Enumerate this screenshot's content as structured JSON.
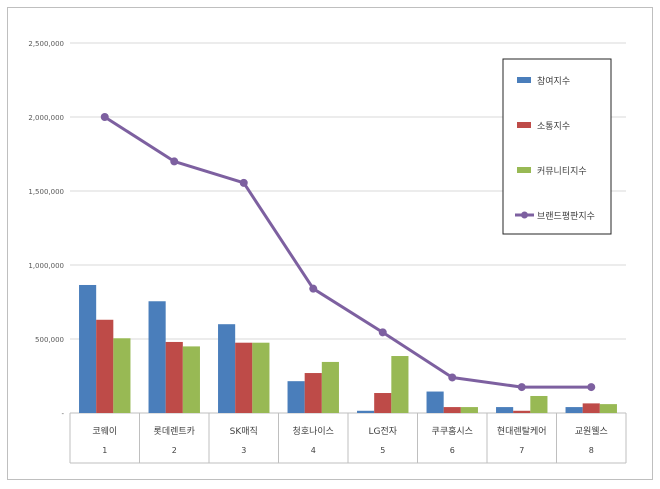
{
  "chart_data": {
    "type": "bar",
    "categories": [
      "코웨이",
      "롯데렌트카",
      "SK매직",
      "청호나이스",
      "LG전자",
      "쿠쿠홈시스",
      "현대렌탈케어",
      "교원웰스"
    ],
    "category_numbers": [
      "1",
      "2",
      "3",
      "4",
      "5",
      "6",
      "7",
      "8"
    ],
    "series": [
      {
        "name": "참여지수",
        "values": [
          865000,
          755000,
          600000,
          215000,
          15000,
          145000,
          40000,
          40000
        ],
        "color": "#4a7ebb"
      },
      {
        "name": "소통지수",
        "values": [
          630000,
          480000,
          475000,
          270000,
          135000,
          40000,
          15000,
          65000
        ],
        "color": "#be4b48"
      },
      {
        "name": "커뮤니티지수",
        "values": [
          505000,
          450000,
          475000,
          345000,
          385000,
          40000,
          115000,
          60000
        ],
        "color": "#98b954"
      }
    ],
    "line_series": {
      "name": "브랜드평판지수",
      "values": [
        2000000,
        1700000,
        1555000,
        840000,
        545000,
        240000,
        175000,
        175000
      ],
      "color": "#7d60a0"
    },
    "ylim": [
      0,
      2500000
    ],
    "y_ticks": [
      "-",
      "500,000",
      "1,000,000",
      "1,500,000",
      "2,000,000",
      "2,500,000"
    ],
    "grid": true,
    "legend_position": "right"
  }
}
